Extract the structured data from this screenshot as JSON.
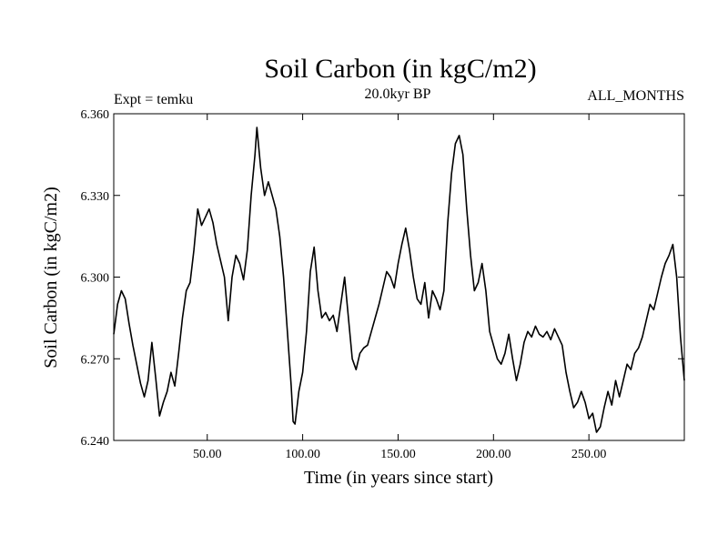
{
  "chart_data": {
    "type": "line",
    "title": "Soil Carbon (in kgC/m2)",
    "subtitle_left": "Expt = temku",
    "subtitle_center": "20.0kyr BP",
    "subtitle_right": "ALL_MONTHS",
    "xlabel": "Time (in years since start)",
    "ylabel": "Soil Carbon (in kgC/m2)",
    "xlim": [
      1,
      300
    ],
    "ylim": [
      6.24,
      6.36
    ],
    "x_ticks": [
      50,
      100,
      150,
      200,
      250
    ],
    "x_tick_labels": [
      "50.00",
      "100.00",
      "150.00",
      "200.00",
      "250.00"
    ],
    "y_ticks": [
      6.24,
      6.27,
      6.3,
      6.33,
      6.36
    ],
    "y_tick_labels": [
      "6.240",
      "6.270",
      "6.300",
      "6.330",
      "6.360"
    ],
    "grid": false,
    "series": [
      {
        "color": "#000000",
        "x": [
          1,
          3,
          5,
          7,
          9,
          11,
          13,
          15,
          17,
          19,
          21,
          23,
          25,
          27,
          29,
          31,
          33,
          35,
          37,
          39,
          41,
          43,
          45,
          47,
          49,
          51,
          53,
          55,
          57,
          59,
          61,
          63,
          65,
          67,
          69,
          71,
          73,
          75,
          76,
          78,
          80,
          82,
          84,
          86,
          88,
          90,
          92,
          94,
          95,
          96,
          98,
          100,
          102,
          104,
          106,
          108,
          110,
          112,
          114,
          116,
          118,
          120,
          122,
          124,
          126,
          128,
          130,
          132,
          134,
          136,
          138,
          140,
          142,
          144,
          146,
          148,
          150,
          152,
          154,
          156,
          158,
          160,
          162,
          164,
          166,
          168,
          170,
          172,
          174,
          176,
          178,
          180,
          182,
          184,
          186,
          188,
          190,
          192,
          194,
          196,
          198,
          200,
          202,
          204,
          206,
          208,
          210,
          212,
          214,
          216,
          218,
          220,
          222,
          224,
          226,
          228,
          230,
          232,
          234,
          236,
          238,
          240,
          242,
          244,
          246,
          248,
          250,
          252,
          254,
          256,
          258,
          260,
          262,
          264,
          266,
          268,
          270,
          272,
          274,
          276,
          278,
          280,
          282,
          284,
          286,
          288,
          290,
          292,
          294,
          296,
          298,
          300
        ],
        "y": [
          6.279,
          6.29,
          6.295,
          6.292,
          6.283,
          6.275,
          6.268,
          6.261,
          6.256,
          6.262,
          6.276,
          6.263,
          6.249,
          6.254,
          6.258,
          6.265,
          6.26,
          6.272,
          6.285,
          6.295,
          6.298,
          6.31,
          6.325,
          6.319,
          6.322,
          6.325,
          6.32,
          6.312,
          6.306,
          6.3,
          6.284,
          6.3,
          6.308,
          6.305,
          6.299,
          6.31,
          6.33,
          6.345,
          6.355,
          6.34,
          6.33,
          6.335,
          6.33,
          6.325,
          6.315,
          6.3,
          6.28,
          6.26,
          6.247,
          6.246,
          6.258,
          6.265,
          6.28,
          6.302,
          6.311,
          6.295,
          6.285,
          6.287,
          6.284,
          6.286,
          6.28,
          6.29,
          6.3,
          6.285,
          6.27,
          6.266,
          6.272,
          6.274,
          6.275,
          6.28,
          6.285,
          6.29,
          6.296,
          6.302,
          6.3,
          6.296,
          6.305,
          6.312,
          6.318,
          6.31,
          6.3,
          6.292,
          6.29,
          6.298,
          6.285,
          6.295,
          6.292,
          6.288,
          6.295,
          6.32,
          6.338,
          6.349,
          6.352,
          6.345,
          6.325,
          6.308,
          6.295,
          6.298,
          6.305,
          6.295,
          6.28,
          6.275,
          6.27,
          6.268,
          6.272,
          6.279,
          6.27,
          6.262,
          6.268,
          6.276,
          6.28,
          6.278,
          6.282,
          6.279,
          6.278,
          6.28,
          6.277,
          6.281,
          6.278,
          6.275,
          6.265,
          6.258,
          6.252,
          6.254,
          6.258,
          6.254,
          6.248,
          6.25,
          6.243,
          6.245,
          6.252,
          6.258,
          6.253,
          6.262,
          6.256,
          6.262,
          6.268,
          6.266,
          6.272,
          6.274,
          6.278,
          6.284,
          6.29,
          6.288,
          6.294,
          6.3,
          6.305,
          6.308,
          6.312,
          6.3,
          6.278,
          6.262
        ]
      }
    ]
  }
}
